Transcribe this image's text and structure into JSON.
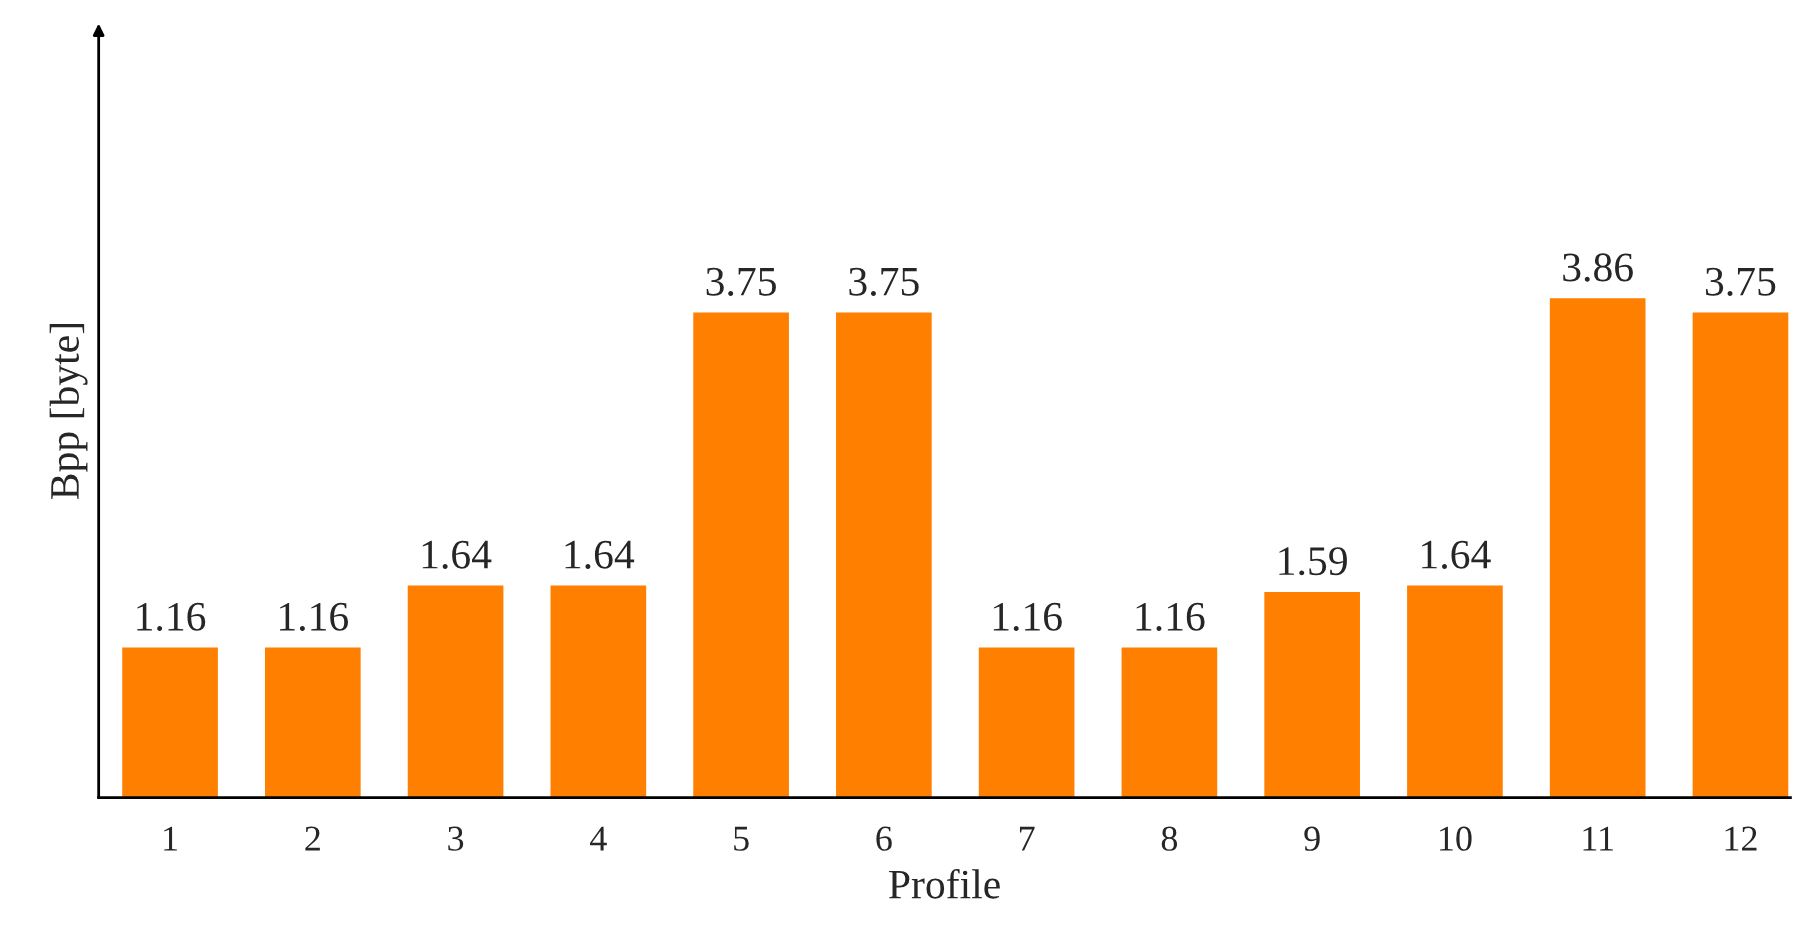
{
  "chart_data": {
    "type": "bar",
    "xlabel": "Profile",
    "ylabel": "Bpp [byte]",
    "categories": [
      "1",
      "2",
      "3",
      "4",
      "5",
      "6",
      "7",
      "8",
      "9",
      "10",
      "11",
      "12"
    ],
    "values": [
      1.16,
      1.16,
      1.64,
      1.64,
      3.75,
      3.75,
      1.16,
      1.16,
      1.59,
      1.64,
      3.86,
      3.75
    ],
    "color": "#ff7f00",
    "data_labels": true,
    "grid": false,
    "legend": false
  }
}
